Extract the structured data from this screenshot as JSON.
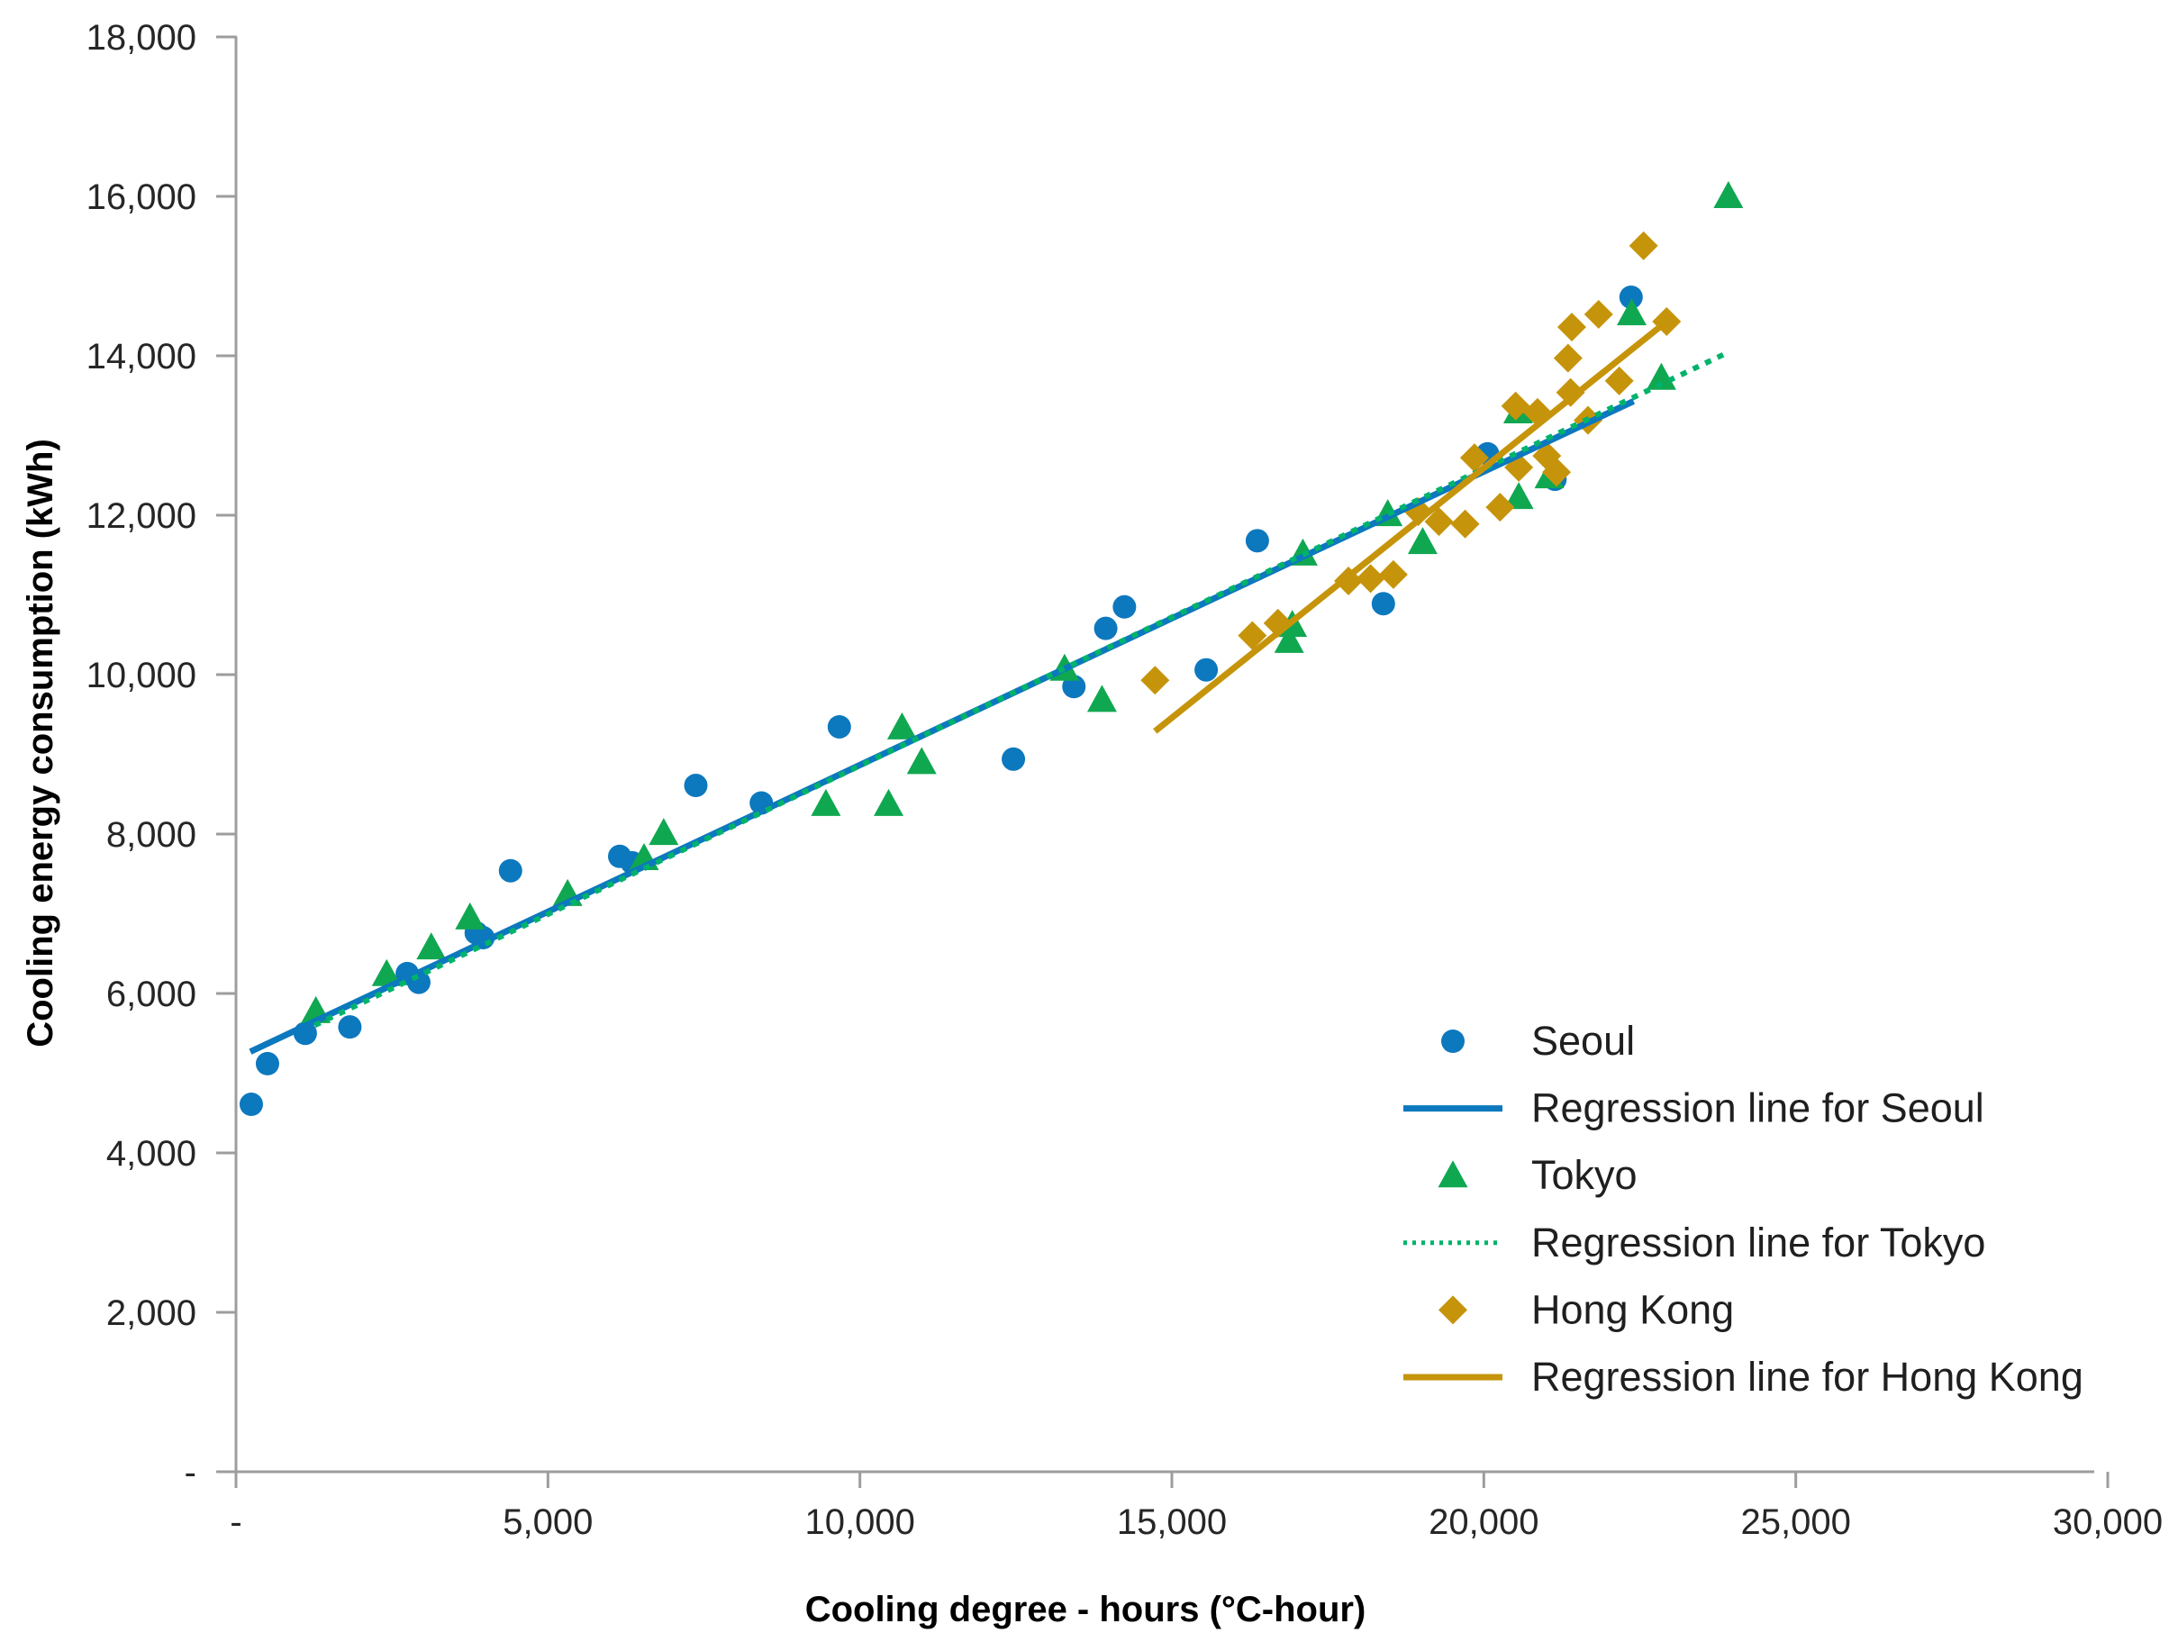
{
  "chart_data": {
    "type": "scatter",
    "title": "",
    "x_axis": {
      "label": "Cooling degree - hours (°C-hour)",
      "range": [
        0,
        30000
      ],
      "ticks": [
        {
          "value": 0,
          "label": "-"
        },
        {
          "value": 5000,
          "label": "5,000"
        },
        {
          "value": 10000,
          "label": "10,000"
        },
        {
          "value": 15000,
          "label": "15,000"
        },
        {
          "value": 20000,
          "label": "20,000"
        },
        {
          "value": 25000,
          "label": "25,000"
        },
        {
          "value": 30000,
          "label": "30,000"
        }
      ]
    },
    "y_axis": {
      "label": "Cooling energy consumption (kWh)",
      "range": [
        0,
        18000
      ],
      "ticks": [
        {
          "value": 0,
          "label": "-"
        },
        {
          "value": 2000,
          "label": "2,000"
        },
        {
          "value": 4000,
          "label": "4,000"
        },
        {
          "value": 6000,
          "label": "6,000"
        },
        {
          "value": 8000,
          "label": "8,000"
        },
        {
          "value": 10000,
          "label": "10,000"
        },
        {
          "value": 12000,
          "label": "12,000"
        },
        {
          "value": 14000,
          "label": "14,000"
        },
        {
          "value": 16000,
          "label": "16,000"
        },
        {
          "value": 18000,
          "label": "18,000"
        }
      ]
    },
    "series": [
      {
        "name": "Seoul",
        "marker": "circle",
        "color": "#0c78be",
        "points": [
          [
            245,
            4610
          ],
          [
            505,
            5120
          ],
          [
            1110,
            5500
          ],
          [
            1825,
            5580
          ],
          [
            2745,
            6250
          ],
          [
            2930,
            6140
          ],
          [
            3850,
            6760
          ],
          [
            3960,
            6700
          ],
          [
            4400,
            7540
          ],
          [
            6150,
            7720
          ],
          [
            6350,
            7640
          ],
          [
            7370,
            8610
          ],
          [
            8420,
            8390
          ],
          [
            9670,
            9345
          ],
          [
            12460,
            8940
          ],
          [
            13430,
            9850
          ],
          [
            13940,
            10580
          ],
          [
            14240,
            10850
          ],
          [
            15550,
            10060
          ],
          [
            16370,
            11680
          ],
          [
            18390,
            10890
          ],
          [
            20060,
            12770
          ],
          [
            21140,
            12450
          ],
          [
            22360,
            14735
          ]
        ]
      },
      {
        "name": "Tokyo",
        "marker": "triangle",
        "color": "#10a751",
        "points": [
          [
            1280,
            5775
          ],
          [
            2415,
            6240
          ],
          [
            3130,
            6575
          ],
          [
            3750,
            6950
          ],
          [
            5315,
            7245
          ],
          [
            6540,
            7695
          ],
          [
            6855,
            8010
          ],
          [
            9455,
            8375
          ],
          [
            10460,
            8375
          ],
          [
            10675,
            9335
          ],
          [
            10990,
            8900
          ],
          [
            13280,
            10070
          ],
          [
            13880,
            9680
          ],
          [
            16880,
            10420
          ],
          [
            16930,
            10620
          ],
          [
            17100,
            11515
          ],
          [
            18460,
            12010
          ],
          [
            19020,
            11660
          ],
          [
            20550,
            13300
          ],
          [
            20560,
            12225
          ],
          [
            21050,
            12485
          ],
          [
            22370,
            14530
          ],
          [
            22845,
            13720
          ],
          [
            23920,
            16000
          ]
        ]
      },
      {
        "name": "Hong Kong",
        "marker": "diamond",
        "color": "#c6940b",
        "points": [
          [
            14730,
            9930
          ],
          [
            16290,
            10490
          ],
          [
            16700,
            10645
          ],
          [
            17830,
            11175
          ],
          [
            18185,
            11205
          ],
          [
            18550,
            11255
          ],
          [
            18950,
            12045
          ],
          [
            19280,
            11920
          ],
          [
            19700,
            11890
          ],
          [
            19850,
            12720
          ],
          [
            20260,
            12100
          ],
          [
            20510,
            13370
          ],
          [
            20560,
            12600
          ],
          [
            20860,
            13290
          ],
          [
            21010,
            12745
          ],
          [
            21165,
            12540
          ],
          [
            21350,
            13970
          ],
          [
            21390,
            13540
          ],
          [
            21410,
            14360
          ],
          [
            21670,
            13190
          ],
          [
            21840,
            14520
          ],
          [
            22170,
            13685
          ],
          [
            22560,
            15380
          ],
          [
            22930,
            14430
          ]
        ]
      }
    ],
    "regression_lines": [
      {
        "name": "Regression line for Seoul",
        "color": "#0c78be",
        "style": "solid",
        "from": [
          230,
          5270
        ],
        "to": [
          22400,
          13430
        ]
      },
      {
        "name": "Regression line for Tokyo",
        "color": "#00b36b",
        "style": "dotted",
        "from": [
          1260,
          5600
        ],
        "to": [
          23880,
          14030
        ]
      },
      {
        "name": "Regression line for  Hong Kong",
        "color": "#c6940b",
        "style": "solid",
        "from": [
          14730,
          9290
        ],
        "to": [
          22930,
          14430
        ]
      }
    ],
    "legend": {
      "position": "inside-right",
      "entries": [
        {
          "label": "Seoul",
          "swatch": "circle",
          "color": "#0c78be"
        },
        {
          "label": "Regression line for Seoul",
          "swatch": "line",
          "color": "#0c78be"
        },
        {
          "label": "Tokyo",
          "swatch": "triangle",
          "color": "#10a751"
        },
        {
          "label": "Regression line for Tokyo",
          "swatch": "dotted-line",
          "color": "#00b36b"
        },
        {
          "label": "Hong Kong",
          "swatch": "diamond",
          "color": "#c6940b"
        },
        {
          "label": "Regression line for  Hong Kong",
          "swatch": "line",
          "color": "#c6940b"
        }
      ]
    },
    "grid": "off",
    "axis_color": "#9d9d9d"
  }
}
